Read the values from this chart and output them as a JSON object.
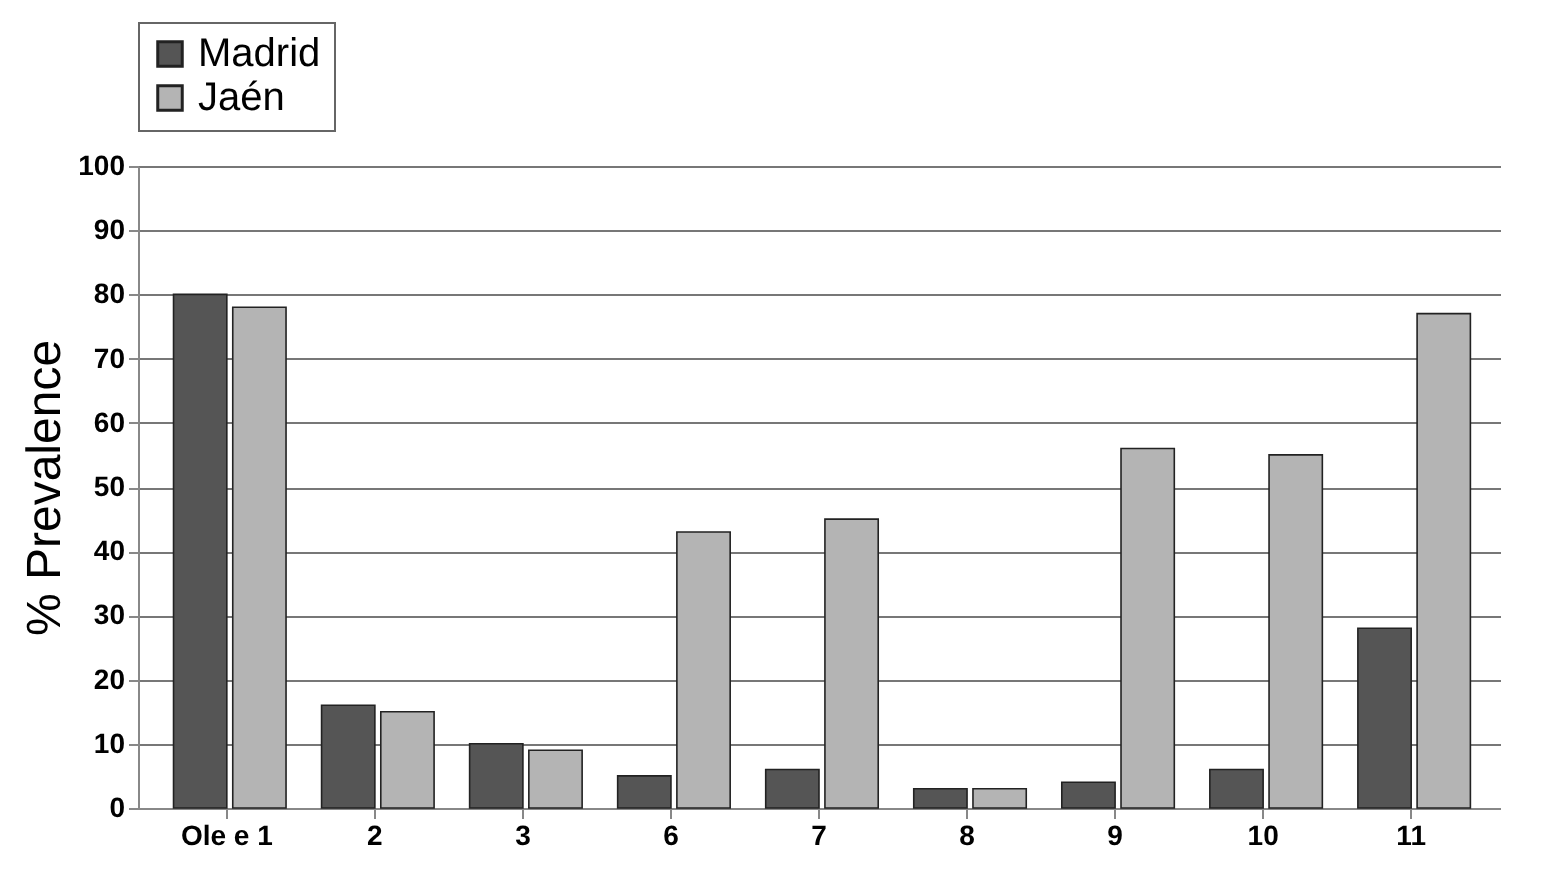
{
  "chart_data": {
    "type": "bar",
    "ylabel": "% Prevalence",
    "categories": [
      "Ole e 1",
      "2",
      "3",
      "6",
      "7",
      "8",
      "9",
      "10",
      "11"
    ],
    "series": [
      {
        "name": "Madrid",
        "color": "#555555",
        "values": [
          80,
          16,
          10,
          5,
          6,
          3,
          4,
          6,
          28
        ]
      },
      {
        "name": "Jaén",
        "color": "#b4b4b4",
        "values": [
          78,
          15,
          9,
          43,
          45,
          3,
          56,
          55,
          77
        ]
      }
    ],
    "ylim": [
      0,
      100
    ],
    "yticks": [
      0,
      10,
      20,
      30,
      40,
      50,
      60,
      70,
      80,
      90,
      100
    ],
    "grid": "y",
    "legend": "top"
  }
}
